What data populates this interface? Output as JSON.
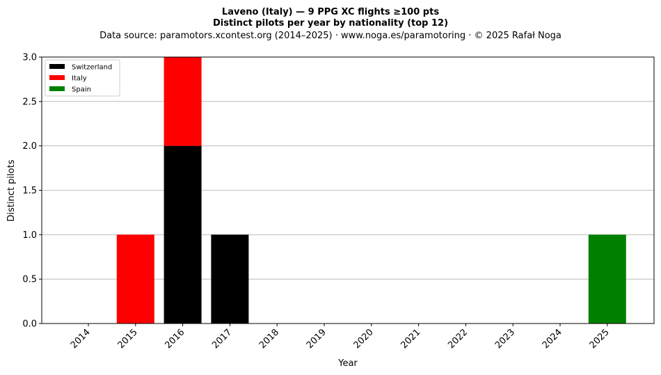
{
  "chart_data": {
    "type": "bar",
    "stacked": true,
    "title": "Laveno (Italy)  —  9 PPG XC flights ≥100 pts",
    "subtitle": "Distinct pilots per year by nationality (top 12)",
    "source": "Data source: paramotors.xcontest.org (2014–2025)  ·  www.noga.es/paramotoring  ·  © 2025 Rafał Noga",
    "xlabel": "Year",
    "ylabel": "Distinct pilots",
    "categories": [
      "2014",
      "2015",
      "2016",
      "2017",
      "2018",
      "2019",
      "2020",
      "2021",
      "2022",
      "2023",
      "2024",
      "2025"
    ],
    "series": [
      {
        "name": "Switzerland",
        "color": "#000000",
        "values": [
          0,
          0,
          2,
          1,
          0,
          0,
          0,
          0,
          0,
          0,
          0,
          0
        ]
      },
      {
        "name": "Italy",
        "color": "#ff0000",
        "values": [
          0,
          1,
          1,
          0,
          0,
          0,
          0,
          0,
          0,
          0,
          0,
          0
        ]
      },
      {
        "name": "Spain",
        "color": "#008000",
        "values": [
          0,
          0,
          0,
          0,
          0,
          0,
          0,
          0,
          0,
          0,
          0,
          1
        ]
      }
    ],
    "ylim": [
      0,
      3
    ],
    "yticks": [
      "0.0",
      "0.5",
      "1.0",
      "1.5",
      "2.0",
      "2.5",
      "3.0"
    ],
    "grid": "y",
    "legend_position": "top-left"
  }
}
